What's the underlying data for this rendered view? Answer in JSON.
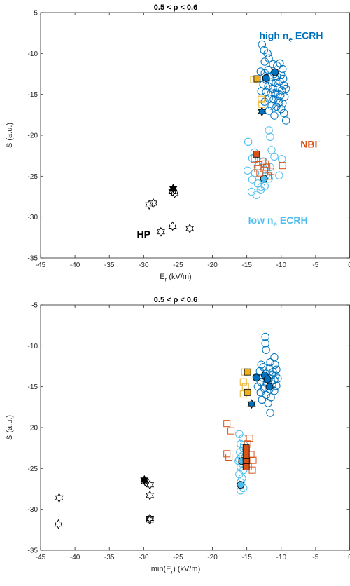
{
  "chart_data": [
    {
      "type": "scatter",
      "title": "0.5 < ρ < 0.6",
      "xlabel": "E",
      "xlabel_sub": "r",
      "xlabel_suffix": " (kV/m)",
      "ylabel": "S (a.u.)",
      "xlim": [
        -45,
        0
      ],
      "ylim": [
        -35,
        -5
      ],
      "xticks": [
        -45,
        -40,
        -35,
        -30,
        -25,
        -20,
        -15,
        -10,
        -5,
        0
      ],
      "yticks": [
        -35,
        -30,
        -25,
        -20,
        -15,
        -10,
        -5
      ],
      "grid": false,
      "annotations": [
        {
          "text": "high n",
          "sub": "e",
          "suffix": " ECRH",
          "color": "#0072BD",
          "x": -13.2,
          "y": -8.2
        },
        {
          "text": "NBI",
          "color": "#D95319",
          "x": -7.2,
          "y": -21.5
        },
        {
          "text": "low n",
          "sub": "e",
          "suffix": " ECRH",
          "color": "#4DBEEE",
          "x": -14.8,
          "y": -30.8
        },
        {
          "text": "HP",
          "color": "#000000",
          "x": -31,
          "y": -32.5
        }
      ],
      "series": [
        {
          "marker": "circle",
          "filled": false,
          "color": "#0072BD",
          "points": [
            [
              -12.8,
              -8.9
            ],
            [
              -12.5,
              -9.6
            ],
            [
              -12.0,
              -10.0
            ],
            [
              -11.8,
              -10.6
            ],
            [
              -12.4,
              -11.0
            ],
            [
              -11.2,
              -11.3
            ],
            [
              -10.6,
              -11.5
            ],
            [
              -10.2,
              -11.2
            ],
            [
              -9.8,
              -11.9
            ],
            [
              -11.9,
              -12.0
            ],
            [
              -12.4,
              -12.4
            ],
            [
              -11.0,
              -12.5
            ],
            [
              -10.6,
              -12.8
            ],
            [
              -10.0,
              -12.6
            ],
            [
              -9.7,
              -13.1
            ],
            [
              -12.2,
              -13.2
            ],
            [
              -11.4,
              -13.5
            ],
            [
              -10.8,
              -13.6
            ],
            [
              -10.2,
              -13.4
            ],
            [
              -9.6,
              -13.9
            ],
            [
              -12.6,
              -13.8
            ],
            [
              -11.9,
              -14.0
            ],
            [
              -11.2,
              -14.3
            ],
            [
              -10.5,
              -14.2
            ],
            [
              -9.9,
              -14.5
            ],
            [
              -12.2,
              -14.7
            ],
            [
              -11.5,
              -14.9
            ],
            [
              -10.8,
              -15.0
            ],
            [
              -10.1,
              -15.1
            ],
            [
              -9.5,
              -15.3
            ],
            [
              -11.8,
              -15.5
            ],
            [
              -11.1,
              -15.6
            ],
            [
              -10.4,
              -15.8
            ],
            [
              -9.8,
              -16.1
            ],
            [
              -12.4,
              -15.9
            ],
            [
              -11.4,
              -16.4
            ],
            [
              -10.7,
              -16.5
            ],
            [
              -10.0,
              -16.8
            ],
            [
              -9.6,
              -17.3
            ],
            [
              -11.8,
              -17.0
            ],
            [
              -9.3,
              -18.2
            ],
            [
              -13.0,
              -12.2
            ],
            [
              -12.9,
              -14.6
            ],
            [
              -9.3,
              -14.3
            ],
            [
              -11.6,
              -12.9
            ],
            [
              -10.9,
              -14.8
            ],
            [
              -10.3,
              -16.0
            ],
            [
              -11.0,
              -17.6
            ]
          ]
        },
        {
          "marker": "circle",
          "filled": true,
          "color": "#0072BD",
          "points": [
            [
              -12.2,
              -13.0
            ],
            [
              -10.9,
              -12.3
            ]
          ]
        },
        {
          "marker": "hexagram",
          "filled": true,
          "color": "#0072BD",
          "points": [
            [
              -12.8,
              -17.1
            ]
          ]
        },
        {
          "marker": "circle",
          "filled": false,
          "color": "#4DBEEE",
          "points": [
            [
              -14.8,
              -20.8
            ],
            [
              -11.8,
              -19.4
            ],
            [
              -11.6,
              -20.2
            ],
            [
              -11.4,
              -21.8
            ],
            [
              -11.0,
              -22.6
            ],
            [
              -9.9,
              -22.9
            ],
            [
              -14.2,
              -22.8
            ],
            [
              -12.6,
              -23.2
            ],
            [
              -13.4,
              -23.8
            ],
            [
              -12.4,
              -24.2
            ],
            [
              -14.9,
              -24.3
            ],
            [
              -13.8,
              -24.6
            ],
            [
              -12.2,
              -24.9
            ],
            [
              -11.8,
              -25.3
            ],
            [
              -10.3,
              -24.9
            ],
            [
              -14.2,
              -25.4
            ],
            [
              -13.4,
              -25.9
            ],
            [
              -12.9,
              -26.3
            ],
            [
              -14.3,
              -26.9
            ],
            [
              -13.6,
              -27.3
            ],
            [
              -13.0,
              -26.7
            ],
            [
              -12.4,
              -26.2
            ],
            [
              -13.9,
              -22.1
            ],
            [
              -11.6,
              -23.9
            ]
          ]
        },
        {
          "marker": "circle",
          "filled": true,
          "color": "#4DBEEE",
          "points": [
            [
              -12.5,
              -25.3
            ]
          ]
        },
        {
          "marker": "square",
          "filled": false,
          "color": "#D95319",
          "points": [
            [
              -13.9,
              -22.9
            ],
            [
              -13.3,
              -23.6
            ],
            [
              -12.7,
              -23.2
            ],
            [
              -12.1,
              -23.9
            ],
            [
              -11.5,
              -24.4
            ],
            [
              -11.9,
              -25.0
            ],
            [
              -13.1,
              -24.6
            ],
            [
              -12.3,
              -23.5
            ],
            [
              -9.8,
              -23.7
            ],
            [
              -13.4,
              -24.1
            ]
          ]
        },
        {
          "marker": "square",
          "filled": true,
          "color": "#D95319",
          "points": [
            [
              -13.6,
              -22.3
            ]
          ]
        },
        {
          "marker": "square",
          "filled": false,
          "color": "#EDB120",
          "points": [
            [
              -14.0,
              -13.2
            ],
            [
              -12.9,
              -15.6
            ],
            [
              -12.8,
              -16.2
            ]
          ]
        },
        {
          "marker": "square",
          "filled": true,
          "color": "#EDB120",
          "points": [
            [
              -13.5,
              -13.1
            ]
          ]
        },
        {
          "marker": "hexagram",
          "filled": false,
          "color": "#000000",
          "points": [
            [
              -25.8,
              -26.9
            ],
            [
              -25.5,
              -27.1
            ],
            [
              -28.6,
              -28.3
            ],
            [
              -29.2,
              -28.5
            ],
            [
              -25.8,
              -31.1
            ],
            [
              -27.5,
              -31.8
            ],
            [
              -23.3,
              -31.4
            ]
          ]
        },
        {
          "marker": "hexagram",
          "filled": true,
          "color": "#000000",
          "points": [
            [
              -25.7,
              -26.5
            ]
          ]
        }
      ]
    },
    {
      "type": "scatter",
      "title": "0.5 < ρ < 0.6",
      "xlabel": "min(E",
      "xlabel_sub": "r",
      "xlabel_suffix": ") (kV/m)",
      "ylabel": "S (a.u.)",
      "xlim": [
        -45,
        0
      ],
      "ylim": [
        -35,
        -5
      ],
      "xticks": [
        -45,
        -40,
        -35,
        -30,
        -25,
        -20,
        -15,
        -10,
        -5,
        0
      ],
      "yticks": [
        -35,
        -30,
        -25,
        -20,
        -15,
        -10,
        -5
      ],
      "grid": false,
      "annotations": [],
      "series": [
        {
          "marker": "circle",
          "filled": false,
          "color": "#0072BD",
          "points": [
            [
              -12.3,
              -8.9
            ],
            [
              -12.3,
              -9.7
            ],
            [
              -12.2,
              -10.5
            ],
            [
              -11.0,
              -11.4
            ],
            [
              -11.6,
              -12.0
            ],
            [
              -10.9,
              -12.3
            ],
            [
              -12.6,
              -12.6
            ],
            [
              -11.7,
              -12.8
            ],
            [
              -10.7,
              -12.9
            ],
            [
              -13.1,
              -13.1
            ],
            [
              -12.2,
              -13.4
            ],
            [
              -11.3,
              -13.5
            ],
            [
              -10.8,
              -13.6
            ],
            [
              -13.6,
              -13.8
            ],
            [
              -12.7,
              -13.9
            ],
            [
              -11.8,
              -14.0
            ],
            [
              -11.0,
              -14.2
            ],
            [
              -13.0,
              -14.4
            ],
            [
              -12.1,
              -14.6
            ],
            [
              -11.3,
              -14.7
            ],
            [
              -10.7,
              -14.9
            ],
            [
              -13.4,
              -15.0
            ],
            [
              -12.5,
              -15.2
            ],
            [
              -11.7,
              -15.3
            ],
            [
              -11.0,
              -15.5
            ],
            [
              -13.0,
              -15.7
            ],
            [
              -12.2,
              -16.0
            ],
            [
              -11.5,
              -16.3
            ],
            [
              -12.8,
              -16.6
            ],
            [
              -11.9,
              -17.0
            ],
            [
              -11.6,
              -18.2
            ],
            [
              -11.2,
              -13.2
            ],
            [
              -12.9,
              -12.3
            ],
            [
              -10.5,
              -14.0
            ]
          ]
        },
        {
          "marker": "circle",
          "filled": true,
          "color": "#0072BD",
          "points": [
            [
              -12.4,
              -13.6
            ],
            [
              -12.0,
              -14.1
            ],
            [
              -11.7,
              -15.0
            ],
            [
              -13.6,
              -13.9
            ]
          ]
        },
        {
          "marker": "hexagram",
          "filled": true,
          "color": "#0072BD",
          "points": [
            [
              -14.3,
              -17.1
            ]
          ]
        },
        {
          "marker": "circle",
          "filled": false,
          "color": "#4DBEEE",
          "points": [
            [
              -16.1,
              -20.8
            ],
            [
              -15.6,
              -21.3
            ],
            [
              -15.9,
              -22.0
            ],
            [
              -15.5,
              -22.5
            ],
            [
              -16.0,
              -23.0
            ],
            [
              -15.6,
              -23.4
            ],
            [
              -16.1,
              -23.9
            ],
            [
              -15.7,
              -24.4
            ],
            [
              -15.9,
              -24.8
            ],
            [
              -15.5,
              -25.2
            ],
            [
              -16.1,
              -25.7
            ],
            [
              -15.7,
              -26.2
            ],
            [
              -15.9,
              -26.7
            ],
            [
              -15.5,
              -27.4
            ],
            [
              -15.9,
              -27.7
            ],
            [
              -15.4,
              -22.1
            ],
            [
              -16.2,
              -24.1
            ],
            [
              -15.8,
              -23.6
            ]
          ]
        },
        {
          "marker": "circle",
          "filled": true,
          "color": "#4DBEEE",
          "points": [
            [
              -15.7,
              -24.1
            ],
            [
              -15.9,
              -27.0
            ]
          ]
        },
        {
          "marker": "square",
          "filled": false,
          "color": "#D95319",
          "points": [
            [
              -17.9,
              -19.5
            ],
            [
              -17.9,
              -23.2
            ],
            [
              -17.6,
              -23.6
            ],
            [
              -14.9,
              -22.0
            ],
            [
              -14.4,
              -23.3
            ],
            [
              -14.1,
              -24.0
            ],
            [
              -14.8,
              -24.8
            ],
            [
              -14.2,
              -25.2
            ],
            [
              -17.3,
              -20.4
            ],
            [
              -14.6,
              -21.3
            ]
          ]
        },
        {
          "marker": "square",
          "filled": true,
          "color": "#D95319",
          "points": [
            [
              -15.1,
              -22.5
            ],
            [
              -15.1,
              -23.0
            ],
            [
              -15.1,
              -23.6
            ],
            [
              -15.1,
              -24.2
            ],
            [
              -15.1,
              -24.8
            ]
          ]
        },
        {
          "marker": "square",
          "filled": false,
          "color": "#EDB120",
          "points": [
            [
              -15.5,
              -14.4
            ],
            [
              -15.2,
              -15.0
            ],
            [
              -15.5,
              -15.9
            ],
            [
              -15.3,
              -13.2
            ]
          ]
        },
        {
          "marker": "square",
          "filled": true,
          "color": "#EDB120",
          "points": [
            [
              -14.9,
              -13.2
            ],
            [
              -14.9,
              -15.7
            ]
          ]
        },
        {
          "marker": "hexagram",
          "filled": false,
          "color": "#000000",
          "points": [
            [
              -42.3,
              -28.6
            ],
            [
              -42.4,
              -31.8
            ],
            [
              -29.1,
              -27.0
            ],
            [
              -29.1,
              -28.3
            ],
            [
              -29.1,
              -31.1
            ],
            [
              -29.1,
              -31.3
            ],
            [
              -29.8,
              -26.6
            ]
          ]
        },
        {
          "marker": "hexagram",
          "filled": true,
          "color": "#000000",
          "points": [
            [
              -29.9,
              -26.4
            ]
          ]
        }
      ]
    }
  ]
}
